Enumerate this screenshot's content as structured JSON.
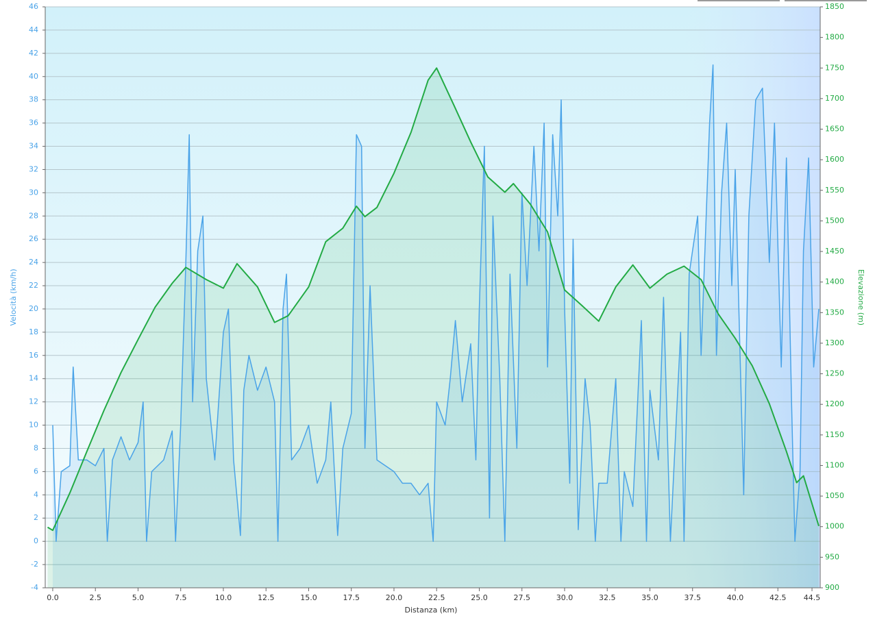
{
  "chart_data": {
    "type": "line",
    "xlabel": "Distanza  (km)",
    "ylabel": "Velocità (km/h)",
    "y2label": "Elevazione (m)",
    "xlim": [
      -0.44,
      44.98
    ],
    "xticks": [
      {
        "value": 0,
        "label": "0.0"
      },
      2.5,
      {
        "value": 5,
        "label": "5.0"
      },
      7.5,
      {
        "value": 10,
        "label": "10.0"
      },
      12.5,
      {
        "value": 15,
        "label": "15.0"
      },
      17.5,
      {
        "value": 20,
        "label": "20.0"
      },
      22.5,
      {
        "value": 25,
        "label": "25.0"
      },
      27.5,
      {
        "value": 30,
        "label": "30.0"
      },
      32.5,
      {
        "value": 35,
        "label": "35.0"
      },
      37.5,
      {
        "value": 40,
        "label": "40.0"
      },
      42.5,
      44.5
    ],
    "ylim": [
      -4,
      46
    ],
    "yticks": [
      -4,
      -2,
      0,
      2,
      4,
      6,
      8,
      10,
      12,
      14,
      16,
      18,
      20,
      22,
      24,
      26,
      28,
      30,
      32,
      34,
      36,
      38,
      40,
      42,
      44,
      46
    ],
    "y2lim": [
      900,
      1850
    ],
    "y2ticks": [
      900,
      950,
      1000,
      1050,
      1100,
      1150,
      1200,
      1250,
      1300,
      1350,
      1400,
      1450,
      1500,
      1550,
      1600,
      1650,
      1700,
      1750,
      1800,
      1850
    ],
    "grid": true,
    "series": [
      {
        "name": "Velocità",
        "color": "#4aa3e8",
        "axis": "y",
        "x": [
          0,
          0.2,
          0.5,
          1,
          1.2,
          1.5,
          2,
          2.5,
          3,
          3.2,
          3.5,
          4,
          4.5,
          5,
          5.3,
          5.5,
          5.8,
          6.5,
          7,
          7.2,
          7.5,
          7.8,
          8,
          8.2,
          8.5,
          8.8,
          9,
          9.5,
          10,
          10.3,
          10.6,
          11,
          11.2,
          11.5,
          12,
          12.5,
          13,
          13.2,
          13.5,
          13.7,
          14,
          14.5,
          15,
          15.5,
          16,
          16.3,
          16.7,
          17,
          17.5,
          17.8,
          18.1,
          18.3,
          18.6,
          19,
          20,
          20.5,
          21,
          21.5,
          22,
          22.3,
          22.5,
          23,
          23.3,
          23.6,
          24,
          24.5,
          24.8,
          25,
          25.3,
          25.6,
          25.8,
          26.2,
          26.5,
          26.8,
          27.2,
          27.5,
          27.8,
          28.2,
          28.5,
          28.8,
          29,
          29.3,
          29.6,
          29.8,
          30,
          30.3,
          30.5,
          30.8,
          31.2,
          31.5,
          31.8,
          32,
          32.5,
          33,
          33.3,
          33.5,
          34,
          34.5,
          34.8,
          35,
          35.5,
          35.8,
          36.2,
          36.5,
          36.8,
          37,
          37.3,
          37.5,
          37.8,
          38,
          38.5,
          38.7,
          38.9,
          39.2,
          39.5,
          39.8,
          40,
          40.5,
          40.8,
          41.2,
          41.6,
          42,
          42.3,
          42.7,
          43,
          43.3,
          43.5,
          43.8,
          44,
          44.3,
          44.6,
          44.9
        ],
        "values": [
          10,
          0,
          6,
          6.5,
          15,
          7,
          7,
          6.5,
          8,
          0,
          7,
          9,
          7,
          8.5,
          12,
          0,
          6,
          7,
          9.5,
          0,
          10,
          24,
          35,
          12,
          25,
          28,
          14,
          7,
          18,
          20,
          7,
          0.5,
          13,
          16,
          13,
          15,
          12,
          0,
          20,
          23,
          7,
          8,
          10,
          5,
          7,
          12,
          0.5,
          8,
          11,
          35,
          34,
          8,
          22,
          7,
          6,
          5,
          5,
          4,
          5,
          0,
          12,
          10,
          14,
          19,
          12,
          17,
          7,
          20,
          34,
          2,
          28,
          14,
          0,
          23,
          8,
          30,
          22,
          34,
          25,
          36,
          15,
          35,
          28,
          38,
          20,
          5,
          26,
          1,
          14,
          10,
          0,
          5,
          5,
          14,
          0,
          6,
          3,
          19,
          0,
          13,
          7,
          21,
          0,
          9,
          18,
          0,
          23,
          25,
          28,
          16,
          36,
          41,
          16,
          30,
          36,
          22,
          32,
          4,
          28,
          38,
          39,
          24,
          36,
          15,
          33,
          12,
          0,
          6,
          25,
          33,
          15,
          20
        ]
      },
      {
        "name": "Elevazione",
        "color": "#22aa44",
        "axis": "y2",
        "x": [
          -0.3,
          0,
          1,
          2,
          3,
          4,
          5,
          6,
          7,
          7.8,
          9,
          10,
          10.8,
          12,
          13,
          13.8,
          15,
          16,
          17,
          17.8,
          18.3,
          19,
          20,
          21,
          22,
          22.5,
          23.5,
          24.5,
          25.5,
          26.5,
          27,
          28,
          29,
          30,
          31,
          32,
          33,
          34,
          35,
          36,
          37,
          38,
          39,
          40,
          41,
          42,
          43,
          43.6,
          44,
          44.9
        ],
        "values": [
          999,
          994,
          1055,
          1123,
          1190,
          1252,
          1306,
          1359,
          1398,
          1424,
          1404,
          1390,
          1430,
          1392,
          1334,
          1345,
          1392,
          1466,
          1488,
          1524,
          1507,
          1522,
          1578,
          1645,
          1730,
          1750,
          1690,
          1629,
          1572,
          1547,
          1561,
          1527,
          1482,
          1387,
          1362,
          1336,
          1392,
          1428,
          1390,
          1413,
          1426,
          1404,
          1348,
          1308,
          1263,
          1201,
          1123,
          1072,
          1083,
          1001
        ]
      }
    ]
  }
}
